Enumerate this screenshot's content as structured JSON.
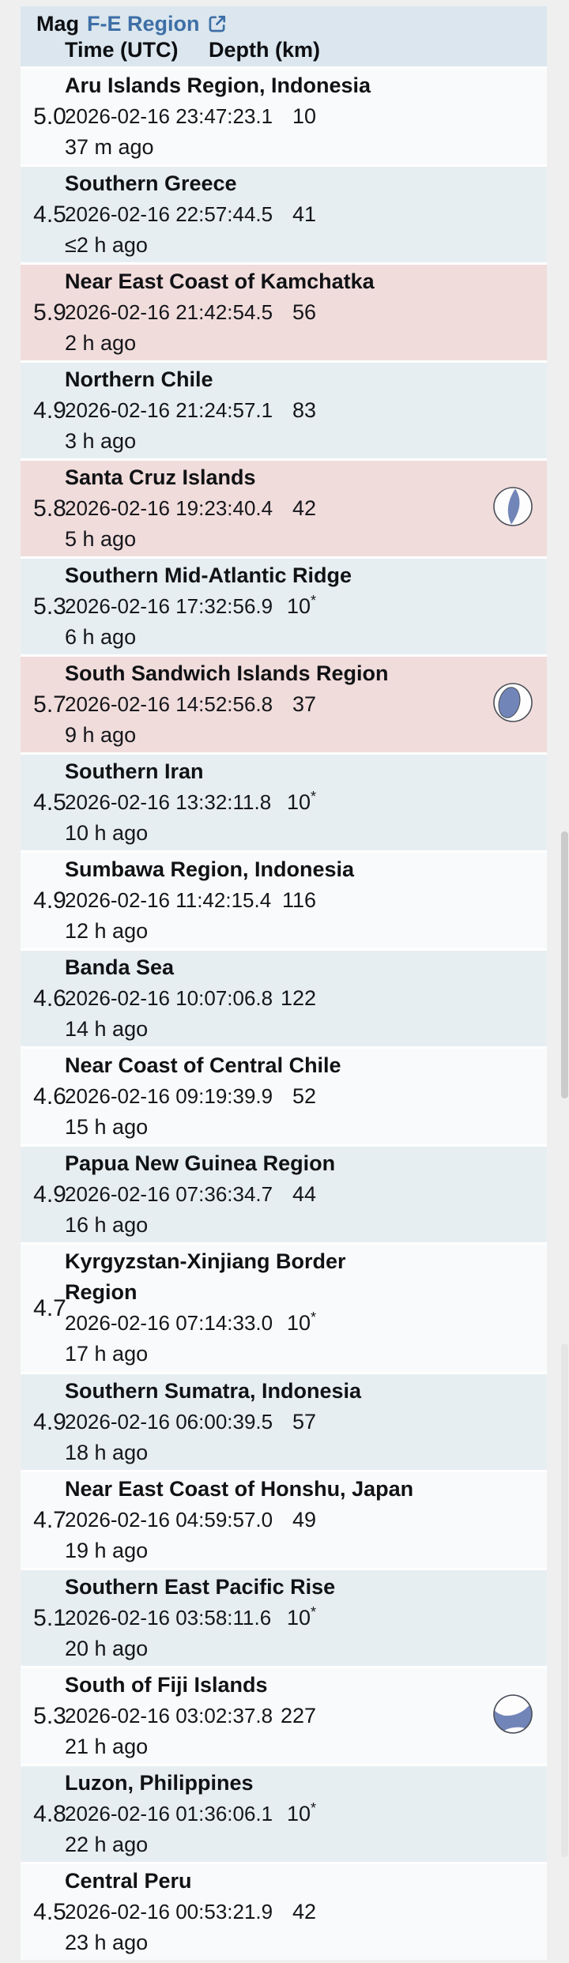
{
  "header": {
    "mag_label": "Mag",
    "region_link_label": "F-E Region",
    "time_label": "Time (UTC)",
    "depth_label": "Depth (km)"
  },
  "colors": {
    "page_background": "#efefef",
    "header_background": "#dbe6ee",
    "row_white": "#f9fafb",
    "row_blue": "#e7eef1",
    "row_pink": "#f1dcdc",
    "separator": "#ffffff",
    "link_blue": "#3d6fa6",
    "text": "#14161a",
    "beachball_blue": "#7285b8",
    "scrollbar_thumb": "#cbcbcc"
  },
  "rows": [
    {
      "mag": "5.0",
      "region": "Aru Islands Region, Indonesia",
      "region2": "",
      "time": "2026-02-16 23:47:23.1",
      "depth": "10",
      "star": "",
      "ago": "37 m ago",
      "tone": "white",
      "ball": ""
    },
    {
      "mag": "4.5",
      "region": "Southern Greece",
      "region2": "",
      "time": "2026-02-16 22:57:44.5",
      "depth": "41",
      "star": "",
      "ago": "≤2 h ago",
      "tone": "blue",
      "ball": ""
    },
    {
      "mag": "5.9",
      "region": "Near East Coast of Kamchatka",
      "region2": "",
      "time": "2026-02-16 21:42:54.5",
      "depth": "56",
      "star": "",
      "ago": "2 h ago",
      "tone": "pink",
      "ball": ""
    },
    {
      "mag": "4.9",
      "region": "Northern Chile",
      "region2": "",
      "time": "2026-02-16 21:24:57.1",
      "depth": "83",
      "star": "",
      "ago": "3 h ago",
      "tone": "blue",
      "ball": ""
    },
    {
      "mag": "5.8",
      "region": "Santa Cruz Islands",
      "region2": "",
      "time": "2026-02-16 19:23:40.4",
      "depth": "42",
      "star": "",
      "ago": "5 h ago",
      "tone": "pink",
      "ball": "lens"
    },
    {
      "mag": "5.3",
      "region": "Southern Mid-Atlantic Ridge",
      "region2": "",
      "time": "2026-02-16 17:32:56.9",
      "depth": "10",
      "star": "*",
      "ago": "6 h ago",
      "tone": "blue",
      "ball": ""
    },
    {
      "mag": "5.7",
      "region": "South Sandwich Islands Region",
      "region2": "",
      "time": "2026-02-16 14:52:56.8",
      "depth": "37",
      "star": "",
      "ago": "9 h ago",
      "tone": "pink",
      "ball": "ellipse"
    },
    {
      "mag": "4.5",
      "region": "Southern Iran",
      "region2": "",
      "time": "2026-02-16 13:32:11.8",
      "depth": "10",
      "star": "*",
      "ago": "10 h ago",
      "tone": "blue",
      "ball": ""
    },
    {
      "mag": "4.9",
      "region": "Sumbawa Region, Indonesia",
      "region2": "",
      "time": "2026-02-16 11:42:15.4",
      "depth": "116",
      "star": "",
      "ago": "12 h ago",
      "tone": "white",
      "ball": ""
    },
    {
      "mag": "4.6",
      "region": "Banda Sea",
      "region2": "",
      "time": "2026-02-16 10:07:06.8",
      "depth": "122",
      "star": "",
      "ago": "14 h ago",
      "tone": "blue",
      "ball": ""
    },
    {
      "mag": "4.6",
      "region": "Near Coast of Central Chile",
      "region2": "",
      "time": "2026-02-16 09:19:39.9",
      "depth": "52",
      "star": "",
      "ago": "15 h ago",
      "tone": "white",
      "ball": ""
    },
    {
      "mag": "4.9",
      "region": "Papua New Guinea Region",
      "region2": "",
      "time": "2026-02-16 07:36:34.7",
      "depth": "44",
      "star": "",
      "ago": "16 h ago",
      "tone": "blue",
      "ball": ""
    },
    {
      "mag": "4.7",
      "region": "Kyrgyzstan-Xinjiang Border",
      "region2": "Region",
      "time": "2026-02-16 07:14:33.0",
      "depth": "10",
      "star": "*",
      "ago": "17 h ago",
      "tone": "white",
      "ball": ""
    },
    {
      "mag": "4.9",
      "region": "Southern Sumatra, Indonesia",
      "region2": "",
      "time": "2026-02-16 06:00:39.5",
      "depth": "57",
      "star": "",
      "ago": "18 h ago",
      "tone": "blue",
      "ball": ""
    },
    {
      "mag": "4.7",
      "region": "Near East Coast of Honshu, Japan",
      "region2": "",
      "time": "2026-02-16 04:59:57.0",
      "depth": "49",
      "star": "",
      "ago": "19 h ago",
      "tone": "white",
      "ball": ""
    },
    {
      "mag": "5.1",
      "region": "Southern East Pacific Rise",
      "region2": "",
      "time": "2026-02-16 03:58:11.6",
      "depth": "10",
      "star": "*",
      "ago": "20 h ago",
      "tone": "blue",
      "ball": ""
    },
    {
      "mag": "5.3",
      "region": "South of Fiji Islands",
      "region2": "",
      "time": "2026-02-16 03:02:37.8",
      "depth": "227",
      "star": "",
      "ago": "21 h ago",
      "tone": "white",
      "ball": "deep"
    },
    {
      "mag": "4.8",
      "region": "Luzon, Philippines",
      "region2": "",
      "time": "2026-02-16 01:36:06.1",
      "depth": "10",
      "star": "*",
      "ago": "22 h ago",
      "tone": "blue",
      "ball": ""
    },
    {
      "mag": "4.5",
      "region": "Central Peru",
      "region2": "",
      "time": "2026-02-16 00:53:21.9",
      "depth": "42",
      "star": "",
      "ago": "23 h ago",
      "tone": "white",
      "ball": ""
    }
  ]
}
